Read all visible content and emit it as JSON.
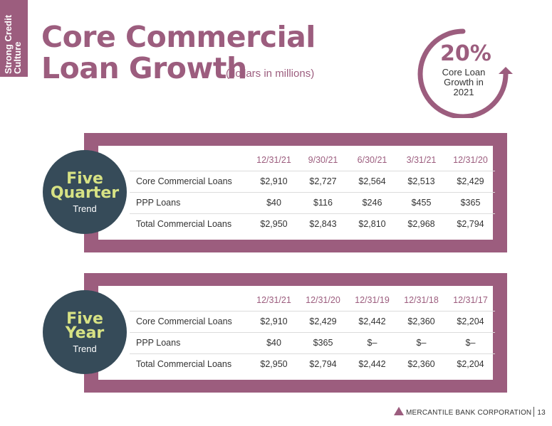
{
  "side_tab": {
    "line1": "Strong Credit",
    "line2": "Culture"
  },
  "header": {
    "title_line1": "Core Commercial",
    "title_line2": "Loan Growth",
    "subtitle": "(dollars in millions)"
  },
  "growth": {
    "percent": "20%",
    "line1": "Core Loan",
    "line2": "Growth in",
    "line3": "2021"
  },
  "quarter_trend": {
    "badge": {
      "line1": "Five",
      "line2": "Quarter",
      "line3": "Trend"
    },
    "columns": [
      "12/31/21",
      "9/30/21",
      "6/30/21",
      "3/31/21",
      "12/31/20"
    ],
    "rows": [
      {
        "label": "Core Commercial Loans",
        "values": [
          "$2,910",
          "$2,727",
          "$2,564",
          "$2,513",
          "$2,429"
        ]
      },
      {
        "label": "PPP Loans",
        "values": [
          "$40",
          "$116",
          "$246",
          "$455",
          "$365"
        ]
      },
      {
        "label": "Total Commercial Loans",
        "values": [
          "$2,950",
          "$2,843",
          "$2,810",
          "$2,968",
          "$2,794"
        ]
      }
    ]
  },
  "year_trend": {
    "badge": {
      "line1": "Five",
      "line2": "Year",
      "line3": "Trend"
    },
    "columns": [
      "12/31/21",
      "12/31/20",
      "12/31/19",
      "12/31/18",
      "12/31/17"
    ],
    "rows": [
      {
        "label": "Core Commercial Loans",
        "values": [
          "$2,910",
          "$2,429",
          "$2,442",
          "$2,360",
          "$2,204"
        ]
      },
      {
        "label": "PPP Loans",
        "values": [
          "$40",
          "$365",
          "$–",
          "$–",
          "$–"
        ]
      },
      {
        "label": "Total Commercial Loans",
        "values": [
          "$2,950",
          "$2,794",
          "$2,442",
          "$2,360",
          "$2,204"
        ]
      }
    ]
  },
  "footer": {
    "company": "MERCANTILE BANK CORPORATION",
    "page": "13"
  },
  "colors": {
    "accent": "#9c5d7e",
    "dark": "#364b59",
    "highlight": "#d7e284"
  }
}
